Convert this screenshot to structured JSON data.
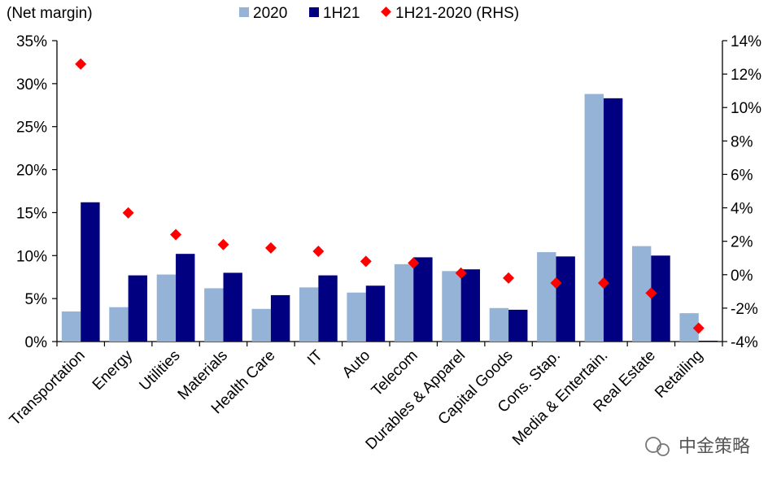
{
  "chart_data": {
    "type": "bar",
    "ylabel": "(Net margin)",
    "categories": [
      "Transportation",
      "Energy",
      "Utilities",
      "Materials",
      "Health Care",
      "IT",
      "Auto",
      "Telecom",
      "Durables & Apparel",
      "Capital Goods",
      "Cons. Stap.",
      "Media & Entertain.",
      "Real Estate",
      "Retailing"
    ],
    "series": [
      {
        "name": "2020",
        "type": "bar",
        "axis": "left",
        "color": "#95B3D7",
        "values": [
          3.5,
          4.0,
          7.8,
          6.2,
          3.8,
          6.3,
          5.7,
          9.0,
          8.2,
          3.9,
          10.4,
          28.8,
          11.1,
          3.3
        ]
      },
      {
        "name": "1H21",
        "type": "bar",
        "axis": "left",
        "color": "#000080",
        "values": [
          16.2,
          7.7,
          10.2,
          8.0,
          5.4,
          7.7,
          6.5,
          9.8,
          8.4,
          3.7,
          9.9,
          28.3,
          10.0,
          0.1
        ]
      },
      {
        "name": "1H21-2020 (RHS)",
        "type": "scatter",
        "axis": "right",
        "color": "#FF0000",
        "values": [
          12.6,
          3.7,
          2.4,
          1.8,
          1.6,
          1.4,
          0.8,
          0.7,
          0.1,
          -0.2,
          -0.5,
          -0.5,
          -1.1,
          -3.2
        ]
      }
    ],
    "left_axis": {
      "min": 0,
      "max": 35,
      "step": 5,
      "tick_labels": [
        "0%",
        "5%",
        "10%",
        "15%",
        "20%",
        "25%",
        "30%",
        "35%"
      ]
    },
    "right_axis": {
      "min": -4,
      "max": 14,
      "step": 2,
      "tick_labels": [
        "-4%",
        "-2%",
        "0%",
        "2%",
        "4%",
        "6%",
        "8%",
        "10%",
        "12%",
        "14%"
      ]
    },
    "legend_position": "top",
    "grid": false
  },
  "watermark": {
    "text": "中金策略",
    "icon": "wechat-icon"
  }
}
